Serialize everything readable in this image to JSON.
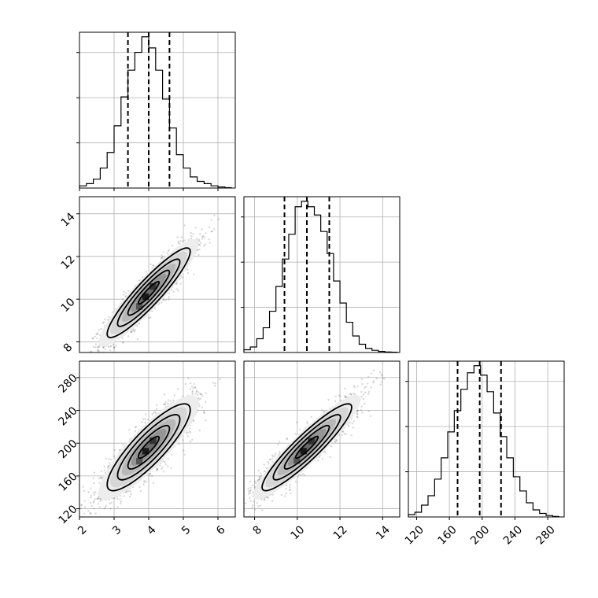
{
  "chart_data": {
    "type": "corner",
    "grid": true,
    "params": [
      {
        "range": [
          2,
          6.5
        ],
        "ticks": [
          2,
          3,
          4,
          5,
          6
        ],
        "quantiles": [
          3.4,
          4.0,
          4.6
        ]
      },
      {
        "range": [
          7.5,
          14.8
        ],
        "ticks": [
          8,
          10,
          12,
          14
        ],
        "quantiles": [
          9.4,
          10.45,
          11.5
        ]
      },
      {
        "range": [
          110,
          300
        ],
        "ticks": [
          120,
          160,
          200,
          240,
          280
        ],
        "quantiles": [
          170,
          197,
          223
        ]
      }
    ],
    "histograms": [
      {
        "param": 0,
        "bin_edges": [
          2.0,
          2.2,
          2.4,
          2.6,
          2.8,
          3.0,
          3.2,
          3.4,
          3.6,
          3.8,
          4.0,
          4.2,
          4.4,
          4.6,
          4.8,
          5.0,
          5.2,
          5.4,
          5.6,
          5.8,
          6.0,
          6.2,
          6.4
        ],
        "counts": [
          1,
          2,
          4,
          9,
          16,
          28,
          41,
          53,
          61,
          68,
          63,
          53,
          40,
          27,
          15,
          9,
          5,
          3,
          2,
          1,
          0.5,
          0.2
        ]
      },
      {
        "param": 1,
        "bin_edges": [
          7.5,
          7.8,
          8.1,
          8.4,
          8.7,
          9.0,
          9.3,
          9.6,
          9.9,
          10.2,
          10.5,
          10.8,
          11.1,
          11.4,
          11.7,
          12.0,
          12.3,
          12.6,
          12.9,
          13.2,
          13.5,
          13.8,
          14.1,
          14.4,
          14.7
        ],
        "counts": [
          1,
          2,
          5,
          9,
          15,
          24,
          34,
          43,
          53,
          55,
          53,
          50,
          44,
          36,
          26,
          18,
          11,
          6,
          3,
          1.5,
          0.8,
          0.4,
          0.2,
          0.1
        ]
      },
      {
        "param": 2,
        "bin_edges": [
          110,
          118,
          126,
          134,
          142,
          150,
          158,
          166,
          174,
          182,
          190,
          198,
          206,
          214,
          222,
          230,
          238,
          246,
          254,
          262,
          270,
          278,
          286,
          294
        ],
        "counts": [
          1,
          2,
          5,
          9,
          16,
          25,
          36,
          45,
          54,
          61,
          64,
          60,
          53,
          44,
          34,
          25,
          17,
          11,
          6,
          3,
          1.5,
          0.6,
          0.2
        ]
      }
    ],
    "scatter_2d": [
      {
        "x_param": 0,
        "y_param": 1,
        "center": [
          4.0,
          10.3
        ],
        "rho": 0.92
      },
      {
        "x_param": 0,
        "y_param": 2,
        "center": [
          4.0,
          195
        ],
        "rho": 0.86
      },
      {
        "x_param": 1,
        "y_param": 2,
        "center": [
          10.45,
          195
        ],
        "rho": 0.92
      }
    ]
  }
}
